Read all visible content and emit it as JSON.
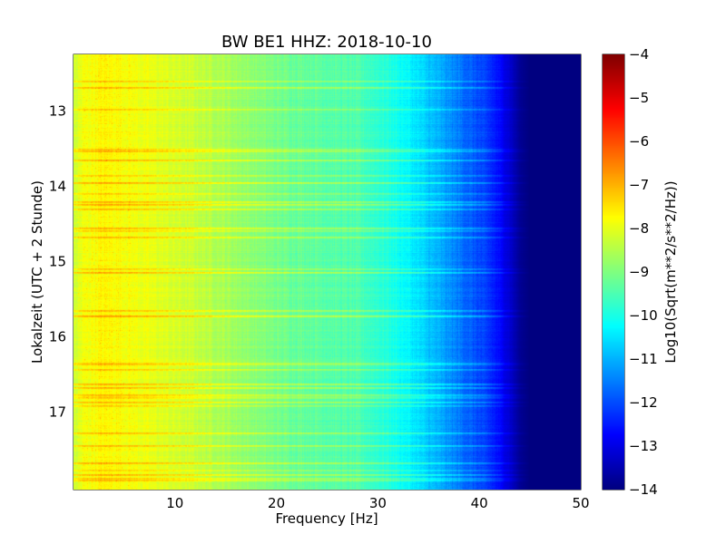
{
  "chart_data": {
    "type": "heatmap",
    "title": "BW BE1 HHZ: 2018-10-10",
    "xlabel": "Frequency [Hz]",
    "ylabel": "Lokalzeit (UTC + 2 Stunde)",
    "xlim": [
      0,
      50
    ],
    "ylim": [
      12.25,
      18.03
    ],
    "y_inverted": true,
    "grid": true,
    "x_ticks": [
      10,
      20,
      30,
      40,
      50
    ],
    "y_ticks": [
      13,
      14,
      15,
      16,
      17
    ],
    "colorbar": {
      "label": "Log10(Sqrt(m**2/s**2/Hz))",
      "range": [
        -14,
        -4
      ],
      "ticks": [
        -4,
        -5,
        -6,
        -7,
        -8,
        -9,
        -10,
        -11,
        -12,
        -13,
        -14
      ],
      "colormap": "jet"
    },
    "spectral_profile": {
      "frequency_hz": [
        0,
        1,
        3,
        5,
        8,
        12,
        16,
        20,
        24,
        28,
        31,
        33,
        35,
        37,
        39,
        41,
        42,
        43,
        44,
        45,
        50
      ],
      "log10_amplitude": [
        -8.3,
        -7.9,
        -7.7,
        -7.8,
        -8.0,
        -8.3,
        -8.7,
        -9.1,
        -9.3,
        -9.5,
        -9.9,
        -10.3,
        -10.8,
        -11.3,
        -11.8,
        -12.3,
        -12.7,
        -13.2,
        -13.8,
        -14,
        -14
      ]
    }
  }
}
